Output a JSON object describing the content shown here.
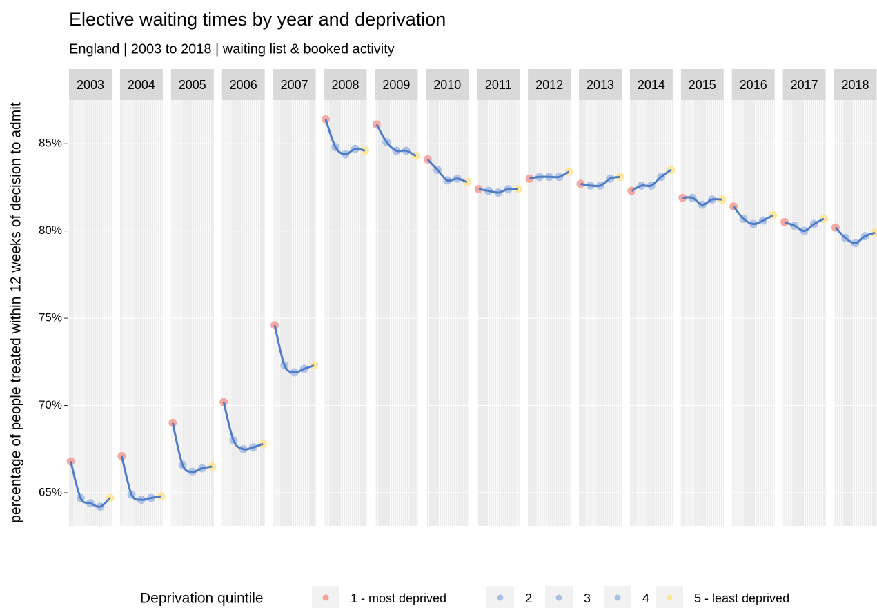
{
  "chart_data": {
    "type": "faceted-scatter",
    "title": "Elective waiting times by year and deprivation",
    "subtitle": "England | 2003 to 2018 | waiting list & booked activity",
    "y_label": "percentage of people treated within 12 weeks of decision to admit",
    "legend_title": "Deprivation quintile",
    "categories": [
      "2003",
      "2004",
      "2005",
      "2006",
      "2007",
      "2008",
      "2009",
      "2010",
      "2011",
      "2012",
      "2013",
      "2014",
      "2015",
      "2016",
      "2017",
      "2018"
    ],
    "series": [
      {
        "name": "1 - most deprived",
        "color": "#f4a19a",
        "values": [
          66.8,
          67.1,
          69.0,
          70.2,
          74.6,
          86.4,
          86.1,
          84.1,
          82.4,
          83.0,
          82.7,
          82.3,
          81.9,
          81.4,
          80.5,
          80.2
        ]
      },
      {
        "name": "2",
        "color": "#aabfe4",
        "values": [
          64.7,
          64.9,
          66.6,
          68.0,
          72.3,
          84.8,
          85.1,
          83.5,
          82.3,
          83.1,
          82.6,
          82.6,
          81.9,
          80.7,
          80.3,
          79.6
        ]
      },
      {
        "name": "3",
        "color": "#aabfe4",
        "values": [
          64.4,
          64.6,
          66.2,
          67.5,
          71.9,
          84.4,
          84.6,
          82.9,
          82.2,
          83.1,
          82.6,
          82.6,
          81.5,
          80.4,
          80.0,
          79.3
        ]
      },
      {
        "name": "4",
        "color": "#aabfe4",
        "values": [
          64.2,
          64.7,
          66.4,
          67.6,
          72.1,
          84.7,
          84.6,
          83.0,
          82.4,
          83.1,
          83.0,
          83.1,
          81.8,
          80.6,
          80.4,
          79.7
        ]
      },
      {
        "name": "5 - least deprived",
        "color": "#fde497",
        "values": [
          64.7,
          64.8,
          66.5,
          67.8,
          72.3,
          84.6,
          84.3,
          82.8,
          82.4,
          83.4,
          83.1,
          83.5,
          81.8,
          80.9,
          80.7,
          79.9
        ]
      }
    ],
    "line_color": "#4f7cc6",
    "ylim": [
      63.1,
      87.5
    ],
    "yticks": [
      {
        "value": 65,
        "label": "65%"
      },
      {
        "value": 70,
        "label": "70%"
      },
      {
        "value": 75,
        "label": "75%"
      },
      {
        "value": 80,
        "label": "80%"
      },
      {
        "value": 85,
        "label": "85%"
      }
    ],
    "grid": true,
    "legend_position": "bottom"
  }
}
